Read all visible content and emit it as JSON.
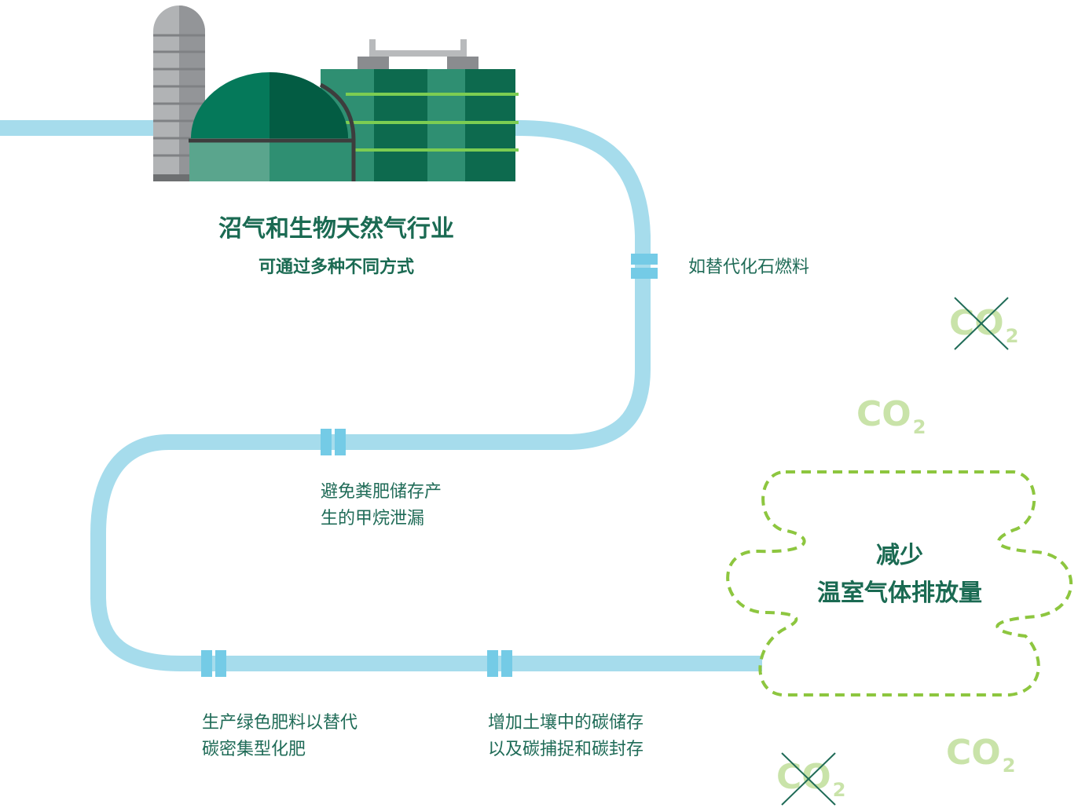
{
  "colors": {
    "pipe": "#a6dcec",
    "pipe_joint": "#74cbe6",
    "text": "#1f6b57",
    "co2": "#c9e3a9",
    "cloud": "#8dc63f",
    "tank_dark": "#0d6a4e",
    "tank_mid": "#2f8f72",
    "silo": "#a7a9ac"
  },
  "industry": {
    "title": "沼气和生物天然气行业",
    "subtitle": "可通过多种不同方式"
  },
  "pathway": {
    "step1": "如替代化石燃料",
    "step2": [
      "避免粪肥储存产",
      "生的甲烷泄漏"
    ],
    "step3": [
      "生产绿色肥料以替代",
      "碳密集型化肥"
    ],
    "step4": [
      "增加土壤中的碳储存",
      "以及碳捕捉和碳封存"
    ]
  },
  "outcome": {
    "line1": "减少",
    "line2": "温室气体排放量"
  },
  "co2_markers": [
    {
      "text": "CO",
      "sub": "2",
      "crossed": true
    },
    {
      "text": "CO",
      "sub": "2",
      "crossed": false
    },
    {
      "text": "CO",
      "sub": "2",
      "crossed": false
    },
    {
      "text": "CO",
      "sub": "2",
      "crossed": true
    }
  ],
  "icons": [
    "biogas-plant-icon",
    "co2-crossed-icon",
    "dashed-cloud-icon"
  ]
}
